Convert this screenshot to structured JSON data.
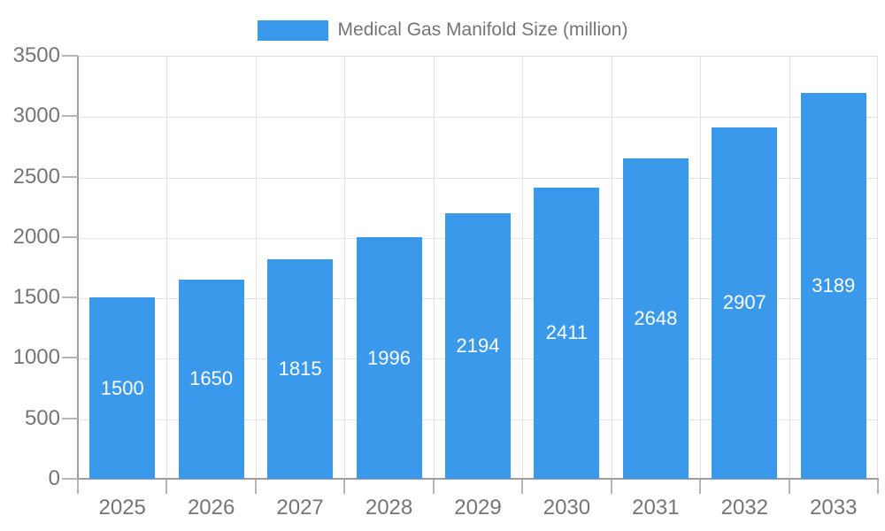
{
  "legend": {
    "label": "Medical Gas Manifold Size (million)",
    "swatch_color": "#3B99EC"
  },
  "chart_data": {
    "type": "bar",
    "title": "Medical Gas Manifold Size (million)",
    "series_name": "Medical Gas Manifold Size (million)",
    "categories": [
      "2025",
      "2026",
      "2027",
      "2028",
      "2029",
      "2030",
      "2031",
      "2032",
      "2033"
    ],
    "values": [
      1500,
      1650,
      1815,
      1996,
      2194,
      2411,
      2648,
      2907,
      3189
    ],
    "value_labels": [
      "1500",
      "1650",
      "1815",
      "1996",
      "2194",
      "2411",
      "2648",
      "2907",
      "3189"
    ],
    "xlabel": "",
    "ylabel": "",
    "ylim": [
      0,
      3500
    ],
    "yticks": [
      0,
      500,
      1000,
      1500,
      2000,
      2500,
      3000,
      3500
    ],
    "grid": true,
    "legend_position": "top",
    "bar_color": "#3B99EC",
    "value_label_color": "#FFFFFF",
    "axis_text_color": "#757575"
  }
}
